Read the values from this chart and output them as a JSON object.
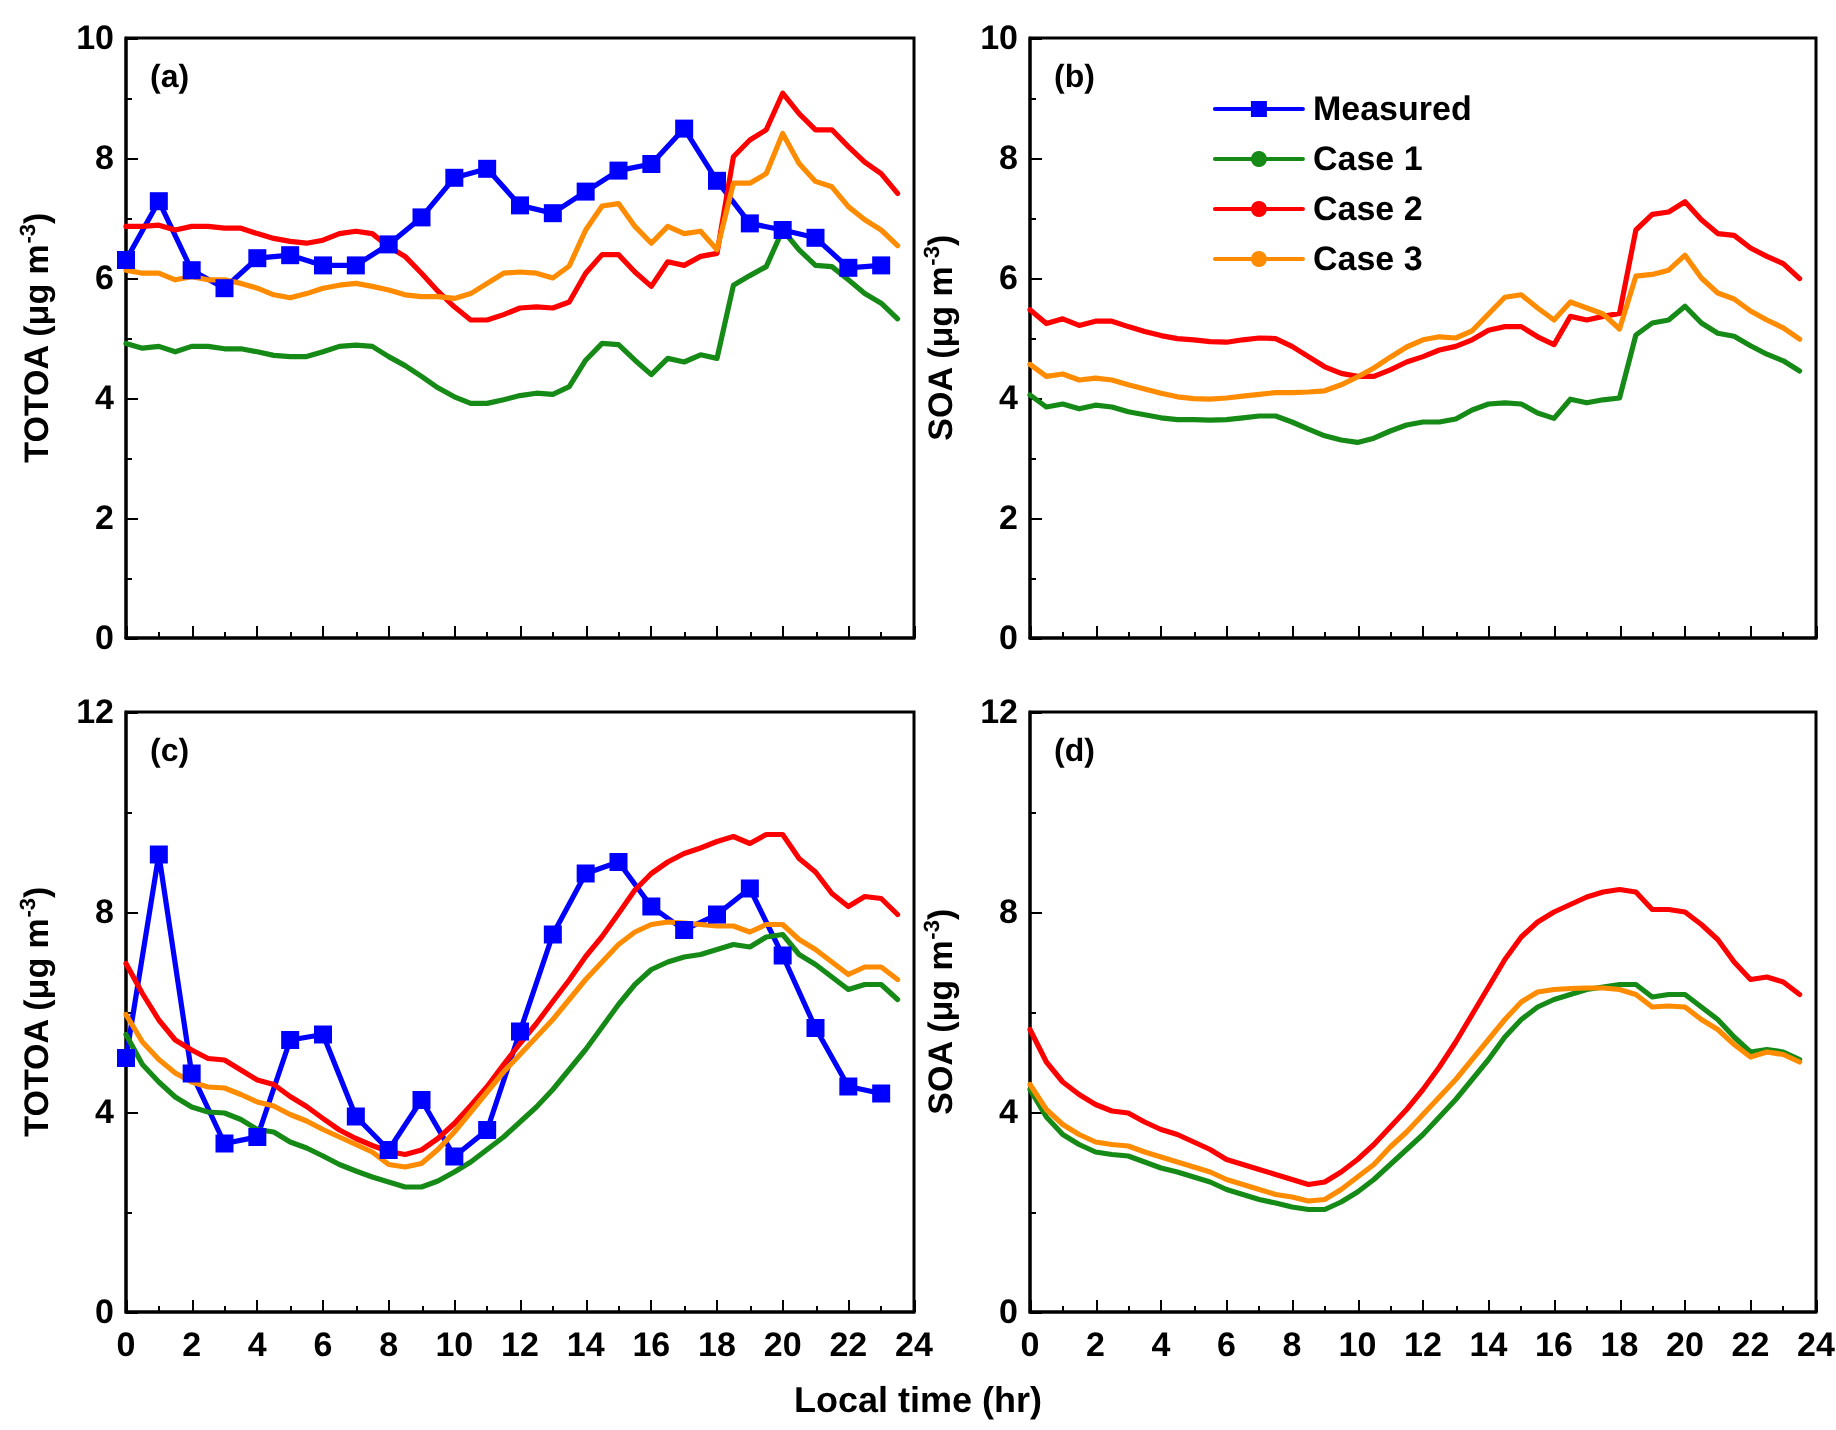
{
  "chart_data": [
    {
      "type": "line",
      "ylabel": "TOTOA (μg m$^{-3}$)",
      "annotations": [
        "(a)"
      ],
      "xlim": [
        0,
        24
      ],
      "xticks": [
        0,
        2,
        4,
        6,
        8,
        10,
        12,
        14,
        16,
        18,
        20,
        22,
        24
      ],
      "ylim": [
        0,
        10
      ],
      "yticks": [
        0,
        2,
        4,
        6,
        8,
        10
      ],
      "tick_labels": "y",
      "grid": false,
      "legend": false,
      "x": [
        0,
        0.5,
        1,
        1.5,
        2,
        2.5,
        3,
        3.5,
        4,
        4.5,
        5,
        5.5,
        6,
        6.5,
        7,
        7.5,
        8,
        8.5,
        9,
        9.5,
        10,
        10.5,
        11,
        11.5,
        12,
        12.5,
        13,
        13.5,
        14,
        14.5,
        15,
        15.5,
        16,
        16.5,
        17,
        17.5,
        18,
        18.5,
        19,
        19.5,
        20,
        20.5,
        21,
        21.5,
        22,
        22.5,
        23,
        23.5
      ],
      "series": [
        {
          "color": "#0000ff",
          "marker": "square",
          "x": [
            0,
            1,
            2,
            3,
            4,
            5,
            6,
            7,
            8,
            9,
            10,
            11,
            12,
            13,
            14,
            15,
            16,
            17,
            18,
            19,
            20,
            21,
            22,
            23
          ],
          "values": [
            6.3,
            7.28,
            6.13,
            5.83,
            6.33,
            6.38,
            6.21,
            6.21,
            6.56,
            7.01,
            7.67,
            7.82,
            7.21,
            7.08,
            7.44,
            7.79,
            7.9,
            8.49,
            7.62,
            6.91,
            6.8,
            6.67,
            6.17,
            6.21
          ]
        },
        {
          "color": "#168a16",
          "marker": "none",
          "values": [
            4.91,
            4.83,
            4.86,
            4.77,
            4.86,
            4.86,
            4.82,
            4.82,
            4.77,
            4.71,
            4.69,
            4.69,
            4.77,
            4.86,
            4.88,
            4.86,
            4.69,
            4.54,
            4.36,
            4.17,
            4.02,
            3.91,
            3.91,
            3.97,
            4.04,
            4.08,
            4.06,
            4.19,
            4.63,
            4.91,
            4.89,
            4.63,
            4.39,
            4.66,
            4.6,
            4.72,
            4.66,
            5.88,
            6.04,
            6.19,
            6.8,
            6.47,
            6.21,
            6.19,
            5.97,
            5.74,
            5.58,
            5.32
          ]
        },
        {
          "color": "#ff0000",
          "marker": "none",
          "values": [
            6.86,
            6.86,
            6.88,
            6.8,
            6.86,
            6.86,
            6.83,
            6.83,
            6.74,
            6.66,
            6.61,
            6.58,
            6.63,
            6.74,
            6.78,
            6.74,
            6.52,
            6.36,
            6.08,
            5.78,
            5.52,
            5.3,
            5.3,
            5.39,
            5.5,
            5.52,
            5.5,
            5.6,
            6.08,
            6.39,
            6.39,
            6.1,
            5.86,
            6.27,
            6.21,
            6.36,
            6.41,
            8.02,
            8.3,
            8.47,
            9.08,
            8.74,
            8.47,
            8.47,
            8.19,
            7.93,
            7.74,
            7.41
          ]
        },
        {
          "color": "#ff8c00",
          "marker": "none",
          "values": [
            6.13,
            6.08,
            6.08,
            5.97,
            6.02,
            5.97,
            5.97,
            5.91,
            5.83,
            5.72,
            5.67,
            5.74,
            5.83,
            5.88,
            5.91,
            5.86,
            5.8,
            5.72,
            5.69,
            5.69,
            5.66,
            5.74,
            5.91,
            6.08,
            6.1,
            6.08,
            6.0,
            6.2,
            6.8,
            7.2,
            7.24,
            6.86,
            6.58,
            6.86,
            6.74,
            6.78,
            6.47,
            7.58,
            7.58,
            7.74,
            8.41,
            7.91,
            7.61,
            7.52,
            7.19,
            6.97,
            6.8,
            6.54
          ]
        }
      ]
    },
    {
      "type": "line",
      "ylabel": "SOA (μg m$^{-3}$)",
      "annotations": [
        "(b)"
      ],
      "xlim": [
        0,
        24
      ],
      "xticks": [
        0,
        2,
        4,
        6,
        8,
        10,
        12,
        14,
        16,
        18,
        20,
        22,
        24
      ],
      "ylim": [
        0,
        10
      ],
      "yticks": [
        0,
        2,
        4,
        6,
        8,
        10
      ],
      "tick_labels": "y",
      "grid": false,
      "legend": "top",
      "x": [
        0,
        0.5,
        1,
        1.5,
        2,
        2.5,
        3,
        3.5,
        4,
        4.5,
        5,
        5.5,
        6,
        6.5,
        7,
        7.5,
        8,
        8.5,
        9,
        9.5,
        10,
        10.5,
        11,
        11.5,
        12,
        12.5,
        13,
        13.5,
        14,
        14.5,
        15,
        15.5,
        16,
        16.5,
        17,
        17.5,
        18,
        18.5,
        19,
        19.5,
        20,
        20.5,
        21,
        21.5,
        22,
        22.5,
        23,
        23.5
      ],
      "series": [
        {
          "name": "Measured",
          "color": "#0000ff",
          "marker": "square",
          "values": [
            null,
            null,
            null,
            null,
            null,
            null,
            null,
            null,
            null,
            null,
            null,
            null,
            null,
            null,
            null,
            null,
            null,
            null,
            null,
            null,
            null,
            null,
            null,
            null,
            null,
            null,
            null,
            null,
            null,
            null,
            null,
            null,
            null,
            null,
            null,
            null,
            null,
            null,
            null,
            null,
            null,
            null,
            null,
            null,
            null,
            null,
            null,
            null
          ]
        },
        {
          "name": "Case 1",
          "color": "#168a16",
          "marker": "none",
          "values": [
            4.05,
            3.85,
            3.9,
            3.82,
            3.88,
            3.85,
            3.77,
            3.72,
            3.67,
            3.64,
            3.64,
            3.63,
            3.64,
            3.67,
            3.7,
            3.7,
            3.6,
            3.48,
            3.37,
            3.3,
            3.26,
            3.33,
            3.45,
            3.55,
            3.6,
            3.6,
            3.65,
            3.8,
            3.9,
            3.92,
            3.9,
            3.75,
            3.66,
            3.98,
            3.92,
            3.97,
            4.0,
            5.05,
            5.25,
            5.3,
            5.53,
            5.25,
            5.08,
            5.03,
            4.87,
            4.73,
            4.62,
            4.45
          ]
        },
        {
          "name": "Case 2",
          "color": "#ff0000",
          "marker": "none",
          "values": [
            5.47,
            5.24,
            5.32,
            5.21,
            5.28,
            5.28,
            5.19,
            5.11,
            5.04,
            4.99,
            4.97,
            4.94,
            4.93,
            4.97,
            5.0,
            4.99,
            4.86,
            4.69,
            4.52,
            4.41,
            4.36,
            4.36,
            4.47,
            4.6,
            4.69,
            4.8,
            4.86,
            4.97,
            5.13,
            5.19,
            5.19,
            5.02,
            4.89,
            5.36,
            5.3,
            5.36,
            5.41,
            6.8,
            7.06,
            7.1,
            7.27,
            6.97,
            6.74,
            6.71,
            6.5,
            6.36,
            6.24,
            5.99
          ]
        },
        {
          "name": "Case 3",
          "color": "#ff8c00",
          "marker": "none",
          "values": [
            4.56,
            4.36,
            4.4,
            4.3,
            4.33,
            4.3,
            4.22,
            4.15,
            4.08,
            4.02,
            3.99,
            3.98,
            4.0,
            4.03,
            4.06,
            4.09,
            4.09,
            4.1,
            4.12,
            4.22,
            4.35,
            4.5,
            4.68,
            4.85,
            4.97,
            5.02,
            5.0,
            5.12,
            5.4,
            5.68,
            5.72,
            5.5,
            5.3,
            5.6,
            5.5,
            5.4,
            5.15,
            6.03,
            6.06,
            6.13,
            6.38,
            6.0,
            5.75,
            5.65,
            5.45,
            5.3,
            5.17,
            4.98
          ]
        }
      ]
    },
    {
      "type": "line",
      "xlabel": "Local time (hr)",
      "ylabel": "TOTOA (μg m$^{-3}$)",
      "annotations": [
        "(c)"
      ],
      "xlim": [
        0,
        24
      ],
      "xticks": [
        0,
        2,
        4,
        6,
        8,
        10,
        12,
        14,
        16,
        18,
        20,
        22,
        24
      ],
      "ylim": [
        0,
        12
      ],
      "yticks": [
        0,
        4,
        8,
        12
      ],
      "grid": false,
      "legend": false,
      "x": [
        0,
        0.5,
        1,
        1.5,
        2,
        2.5,
        3,
        3.5,
        4,
        4.5,
        5,
        5.5,
        6,
        6.5,
        7,
        7.5,
        8,
        8.5,
        9,
        9.5,
        10,
        10.5,
        11,
        11.5,
        12,
        12.5,
        13,
        13.5,
        14,
        14.5,
        15,
        15.5,
        16,
        16.5,
        17,
        17.5,
        18,
        18.5,
        19,
        19.5,
        20,
        20.5,
        21,
        21.5,
        22,
        22.5,
        23,
        23.5
      ],
      "series": [
        {
          "color": "#0000ff",
          "marker": "square",
          "x": [
            0,
            1,
            2,
            3,
            4,
            5,
            6,
            7,
            8,
            9,
            10,
            11,
            12,
            13,
            14,
            15,
            16,
            17,
            18,
            19,
            20,
            21,
            22,
            23
          ],
          "values": [
            5.08,
            9.15,
            4.77,
            3.37,
            3.5,
            5.44,
            5.55,
            3.91,
            3.24,
            4.24,
            3.11,
            3.64,
            5.61,
            7.55,
            8.77,
            9.0,
            8.11,
            7.64,
            7.95,
            8.47,
            7.13,
            5.68,
            4.51,
            4.37
          ]
        },
        {
          "color": "#168a16",
          "marker": "none",
          "values": [
            5.55,
            4.95,
            4.6,
            4.3,
            4.1,
            4.0,
            3.98,
            3.85,
            3.65,
            3.6,
            3.4,
            3.28,
            3.12,
            2.95,
            2.82,
            2.7,
            2.6,
            2.5,
            2.5,
            2.62,
            2.8,
            3.0,
            3.25,
            3.5,
            3.8,
            4.1,
            4.45,
            4.85,
            5.25,
            5.7,
            6.15,
            6.55,
            6.85,
            7.0,
            7.1,
            7.15,
            7.25,
            7.35,
            7.3,
            7.5,
            7.55,
            7.15,
            6.95,
            6.7,
            6.45,
            6.55,
            6.55,
            6.25
          ]
        },
        {
          "color": "#ff0000",
          "marker": "none",
          "values": [
            6.97,
            6.37,
            5.84,
            5.44,
            5.24,
            5.07,
            5.04,
            4.84,
            4.64,
            4.55,
            4.31,
            4.11,
            3.87,
            3.64,
            3.47,
            3.33,
            3.21,
            3.15,
            3.24,
            3.47,
            3.77,
            4.13,
            4.51,
            4.95,
            5.37,
            5.77,
            6.21,
            6.64,
            7.11,
            7.51,
            7.97,
            8.44,
            8.77,
            9.0,
            9.17,
            9.28,
            9.41,
            9.51,
            9.37,
            9.55,
            9.55,
            9.07,
            8.8,
            8.37,
            8.11,
            8.31,
            8.27,
            7.95
          ]
        },
        {
          "color": "#ff8c00",
          "marker": "none",
          "values": [
            5.95,
            5.4,
            5.05,
            4.78,
            4.6,
            4.5,
            4.48,
            4.35,
            4.2,
            4.12,
            3.95,
            3.82,
            3.65,
            3.5,
            3.35,
            3.2,
            2.95,
            2.9,
            2.97,
            3.25,
            3.6,
            4.0,
            4.4,
            4.8,
            5.15,
            5.5,
            5.85,
            6.25,
            6.65,
            7.0,
            7.35,
            7.6,
            7.75,
            7.8,
            7.78,
            7.75,
            7.72,
            7.72,
            7.6,
            7.75,
            7.75,
            7.45,
            7.25,
            7.0,
            6.75,
            6.9,
            6.9,
            6.65
          ]
        }
      ]
    },
    {
      "type": "line",
      "ylabel": "SOA (μg m$^{-3}$)",
      "annotations": [
        "(d)"
      ],
      "xlim": [
        0,
        24
      ],
      "xticks": [
        0,
        2,
        4,
        6,
        8,
        10,
        12,
        14,
        16,
        18,
        20,
        22,
        24
      ],
      "ylim": [
        0,
        12
      ],
      "yticks": [
        0,
        4,
        8,
        12
      ],
      "grid": false,
      "legend": false,
      "x": [
        0,
        0.5,
        1,
        1.5,
        2,
        2.5,
        3,
        3.5,
        4,
        4.5,
        5,
        5.5,
        6,
        6.5,
        7,
        7.5,
        8,
        8.5,
        9,
        9.5,
        10,
        10.5,
        11,
        11.5,
        12,
        12.5,
        13,
        13.5,
        14,
        14.5,
        15,
        15.5,
        16,
        16.5,
        17,
        17.5,
        18,
        18.5,
        19,
        19.5,
        20,
        20.5,
        21,
        21.5,
        22,
        22.5,
        23,
        23.5
      ],
      "series": [
        {
          "color": "#168a16",
          "marker": "none",
          "values": [
            4.45,
            3.9,
            3.55,
            3.35,
            3.2,
            3.15,
            3.12,
            3.0,
            2.88,
            2.8,
            2.7,
            2.6,
            2.45,
            2.35,
            2.25,
            2.18,
            2.1,
            2.05,
            2.05,
            2.2,
            2.4,
            2.65,
            2.95,
            3.25,
            3.55,
            3.9,
            4.25,
            4.65,
            5.05,
            5.5,
            5.85,
            6.1,
            6.25,
            6.35,
            6.45,
            6.5,
            6.55,
            6.55,
            6.3,
            6.35,
            6.35,
            6.1,
            5.85,
            5.5,
            5.2,
            5.25,
            5.2,
            5.05
          ]
        },
        {
          "color": "#ff0000",
          "marker": "none",
          "values": [
            5.65,
            5.0,
            4.6,
            4.35,
            4.15,
            4.02,
            3.98,
            3.8,
            3.65,
            3.55,
            3.4,
            3.25,
            3.05,
            2.95,
            2.85,
            2.75,
            2.65,
            2.55,
            2.6,
            2.8,
            3.05,
            3.35,
            3.7,
            4.05,
            4.45,
            4.9,
            5.4,
            5.95,
            6.5,
            7.05,
            7.5,
            7.8,
            8.0,
            8.15,
            8.3,
            8.4,
            8.45,
            8.4,
            8.05,
            8.05,
            8.0,
            7.75,
            7.45,
            7.0,
            6.65,
            6.7,
            6.6,
            6.35
          ]
        },
        {
          "color": "#ff8c00",
          "marker": "none",
          "values": [
            4.55,
            4.05,
            3.75,
            3.55,
            3.4,
            3.35,
            3.32,
            3.2,
            3.1,
            3.0,
            2.9,
            2.8,
            2.65,
            2.55,
            2.45,
            2.35,
            2.3,
            2.22,
            2.25,
            2.45,
            2.7,
            2.95,
            3.3,
            3.6,
            3.95,
            4.3,
            4.65,
            5.05,
            5.45,
            5.85,
            6.2,
            6.4,
            6.45,
            6.47,
            6.48,
            6.48,
            6.45,
            6.35,
            6.1,
            6.12,
            6.1,
            5.85,
            5.65,
            5.35,
            5.1,
            5.2,
            5.15,
            5.0
          ]
        }
      ]
    }
  ]
}
